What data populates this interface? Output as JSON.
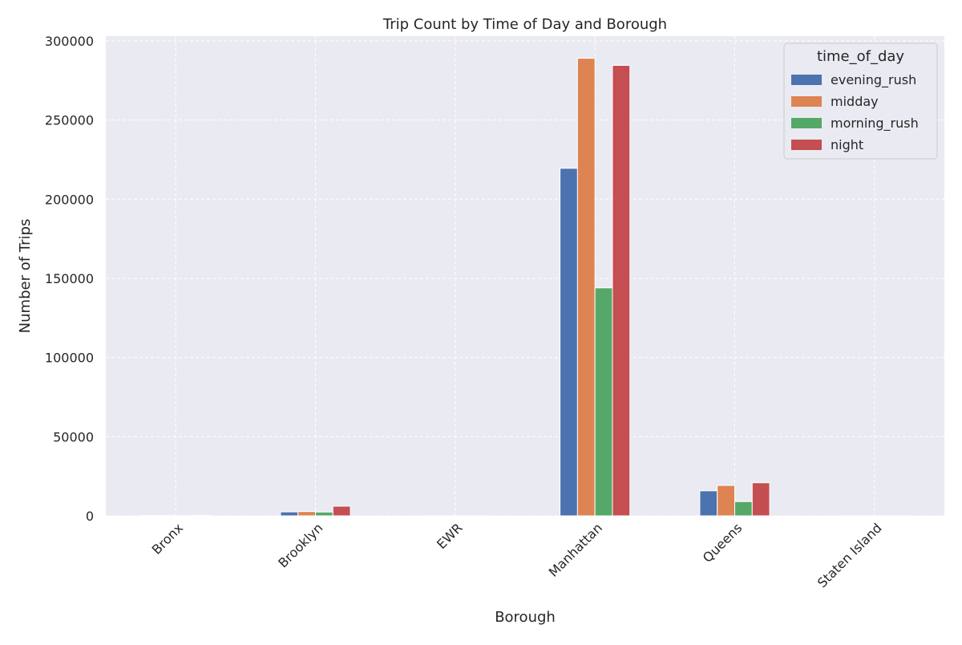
{
  "chart_data": {
    "type": "bar",
    "title": "Trip Count by Time of Day and Borough",
    "xlabel": "Borough",
    "ylabel": "Number of Trips",
    "categories": [
      "Bronx",
      "Brooklyn",
      "EWR",
      "Manhattan",
      "Queens",
      "Staten Island"
    ],
    "series": [
      {
        "name": "evening_rush",
        "color": "#4c72b0",
        "values": [
          180,
          2500,
          10,
          219500,
          15800,
          5
        ]
      },
      {
        "name": "midday",
        "color": "#dd8452",
        "values": [
          200,
          2700,
          20,
          289000,
          19200,
          8
        ]
      },
      {
        "name": "morning_rush",
        "color": "#55a868",
        "values": [
          110,
          2400,
          10,
          144000,
          9000,
          4
        ]
      },
      {
        "name": "night",
        "color": "#c44e52",
        "values": [
          350,
          6100,
          15,
          284500,
          20900,
          10
        ]
      }
    ],
    "ylim": [
      0,
      300000
    ],
    "yticks": [
      0,
      50000,
      100000,
      150000,
      200000,
      250000,
      300000
    ],
    "grid": true,
    "legend": {
      "title": "time_of_day",
      "placement": "top-right"
    },
    "style": {
      "plot_background": "#eaeaf2",
      "grid_color": "#ffffff"
    }
  }
}
